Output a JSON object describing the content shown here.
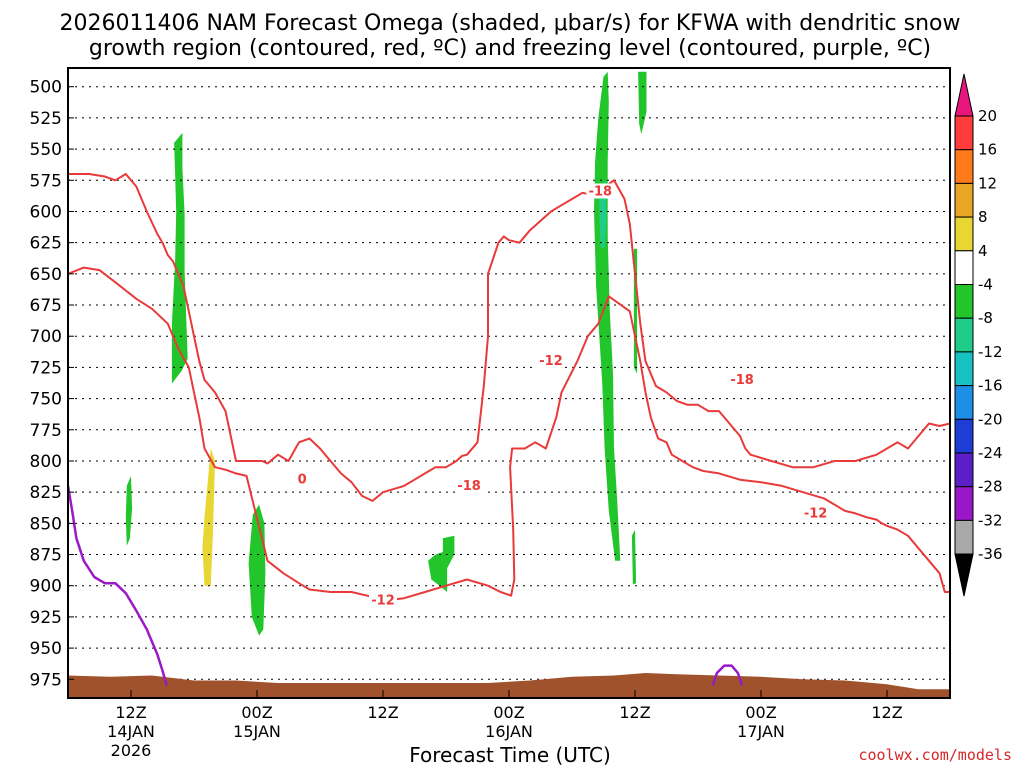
{
  "title_line1": "2026011406 NAM Forecast Omega (shaded, μbar/s) for KFWA with dendritic snow",
  "title_line2": "growth region (contoured, red, ºC) and freezing level (contoured, purple, ºC)",
  "xlabel": "Forecast Time (UTC)",
  "credit": "coolwx.com/models",
  "chart_data": {
    "type": "heatmap",
    "title": "2026011406 NAM Forecast Omega (shaded, μbar/s) for KFWA with dendritic snow growth region (contoured, red, ºC) and freezing level (contoured, purple, ºC)",
    "xlabel": "Forecast Time (UTC)",
    "ylabel": "",
    "x_unit": "hours since 2026-01-14 06Z",
    "xlim": [
      0,
      84
    ],
    "ylim": [
      990,
      485
    ],
    "y_ticks": [
      500,
      525,
      550,
      575,
      600,
      625,
      650,
      675,
      700,
      725,
      750,
      775,
      800,
      825,
      850,
      875,
      900,
      925,
      950,
      975
    ],
    "x_ticks": [
      {
        "x": 6,
        "label": "12Z",
        "line2": "14JAN",
        "line3": "2026"
      },
      {
        "x": 18,
        "label": "00Z",
        "line2": "15JAN",
        "line3": ""
      },
      {
        "x": 30,
        "label": "12Z",
        "line2": "",
        "line3": ""
      },
      {
        "x": 42,
        "label": "00Z",
        "line2": "16JAN",
        "line3": ""
      },
      {
        "x": 54,
        "label": "12Z",
        "line2": "",
        "line3": ""
      },
      {
        "x": 66,
        "label": "00Z",
        "line2": "17JAN",
        "line3": ""
      },
      {
        "x": 78,
        "label": "12Z",
        "line2": "",
        "line3": ""
      }
    ],
    "colorbar": {
      "levels": [
        20,
        16,
        12,
        8,
        4,
        -4,
        -8,
        -12,
        -16,
        -20,
        -24,
        -28,
        -32,
        -36
      ],
      "colors": [
        "#ff3b3b",
        "#ff7a1a",
        "#e8a622",
        "#e8d632",
        "#ffffff",
        "#22c52a",
        "#1fcc88",
        "#19c2c2",
        "#1e8fe6",
        "#1e3cd6",
        "#5a1fc7",
        "#9a17c9",
        "#a8a8a8"
      ],
      "top_arrow_color": "#e8157d",
      "bottom_arrow_color": "#000000"
    },
    "omega_regions": [
      {
        "value": -6,
        "color": "#22c52a",
        "points": [
          [
            10.1,
            545
          ],
          [
            10.9,
            537
          ],
          [
            10.9,
            565
          ],
          [
            11.1,
            602
          ],
          [
            11.1,
            648
          ],
          [
            11.4,
            718
          ],
          [
            10.8,
            728
          ],
          [
            9.9,
            738
          ],
          [
            9.9,
            690
          ],
          [
            10.2,
            640
          ],
          [
            10.3,
            600
          ],
          [
            10.2,
            570
          ]
        ]
      },
      {
        "value": -6,
        "color": "#22c52a",
        "points": [
          [
            5.6,
            820
          ],
          [
            6.0,
            812
          ],
          [
            6.1,
            838
          ],
          [
            5.9,
            862
          ],
          [
            5.6,
            868
          ],
          [
            5.5,
            845
          ]
        ]
      },
      {
        "value": 5,
        "color": "#e8d632",
        "points": [
          [
            13.0,
            845
          ],
          [
            13.6,
            790
          ],
          [
            14.0,
            800
          ],
          [
            13.8,
            858
          ],
          [
            13.6,
            900
          ],
          [
            13.0,
            900
          ],
          [
            12.8,
            870
          ]
        ]
      },
      {
        "value": -6,
        "color": "#22c52a",
        "points": [
          [
            17.6,
            843
          ],
          [
            18.2,
            835
          ],
          [
            18.7,
            850
          ],
          [
            18.8,
            890
          ],
          [
            18.6,
            935
          ],
          [
            18.2,
            940
          ],
          [
            17.5,
            925
          ],
          [
            17.2,
            882
          ]
        ]
      },
      {
        "value": -6,
        "color": "#22c52a",
        "points": [
          [
            35.0,
            875
          ],
          [
            35.7,
            873
          ],
          [
            35.7,
            862
          ],
          [
            36.8,
            860
          ],
          [
            36.8,
            875
          ],
          [
            36.1,
            886
          ],
          [
            36.1,
            905
          ],
          [
            35.4,
            900
          ],
          [
            34.6,
            895
          ],
          [
            34.3,
            880
          ]
        ]
      },
      {
        "value": -6,
        "color": "#22c52a",
        "points": [
          [
            50.5,
            525
          ],
          [
            51.0,
            492
          ],
          [
            51.4,
            488
          ],
          [
            51.5,
            512
          ],
          [
            51.4,
            560
          ],
          [
            51.4,
            620
          ],
          [
            51.6,
            680
          ],
          [
            51.9,
            730
          ],
          [
            52.0,
            790
          ],
          [
            52.3,
            830
          ],
          [
            52.6,
            880
          ],
          [
            52.1,
            880
          ],
          [
            51.5,
            840
          ],
          [
            51.1,
            790
          ],
          [
            50.9,
            740
          ],
          [
            50.6,
            700
          ],
          [
            50.3,
            660
          ],
          [
            50.1,
            600
          ],
          [
            50.2,
            560
          ]
        ]
      },
      {
        "value": -10,
        "color": "#1fcc88",
        "points": [
          [
            50.6,
            580
          ],
          [
            51.2,
            575
          ],
          [
            51.3,
            605
          ],
          [
            51.1,
            630
          ],
          [
            50.7,
            628
          ],
          [
            50.6,
            600
          ]
        ]
      },
      {
        "value": -6,
        "color": "#22c52a",
        "points": [
          [
            54.3,
            488
          ],
          [
            55.1,
            488
          ],
          [
            55.1,
            520
          ],
          [
            54.6,
            538
          ],
          [
            54.4,
            530
          ]
        ]
      },
      {
        "value": -6,
        "color": "#22c52a",
        "points": [
          [
            53.9,
            630
          ],
          [
            54.2,
            630
          ],
          [
            54.2,
            730
          ],
          [
            53.9,
            725
          ]
        ]
      },
      {
        "value": -6,
        "color": "#22c52a",
        "points": [
          [
            53.7,
            860
          ],
          [
            54.0,
            855
          ],
          [
            54.1,
            898
          ],
          [
            53.8,
            899
          ]
        ]
      }
    ],
    "isotherms": [
      {
        "level": -12,
        "color": "#e83a3a",
        "x": [
          0,
          1.5,
          3,
          5,
          6.5,
          8,
          9.5,
          10.5,
          11.5,
          12,
          12.5,
          13,
          14,
          15,
          16,
          17,
          19,
          20.5,
          22,
          23,
          25,
          27,
          28.5,
          30,
          32,
          34,
          36,
          38,
          40,
          41.2,
          42.2,
          42.5,
          42.4,
          42.1,
          42.3,
          43.5,
          44.5,
          45.5,
          46.5,
          47,
          48.5,
          49.5,
          50.5,
          51.5,
          53.5,
          54.5,
          55,
          55.5,
          56.2,
          57,
          57.5,
          58.5,
          59.5,
          60.5,
          62,
          64,
          66,
          68,
          70,
          72,
          73,
          74,
          75,
          76,
          77,
          77.5,
          78,
          79,
          80,
          81,
          82,
          83,
          83.5,
          84
        ],
        "y": [
          650,
          645,
          647,
          660,
          670,
          678,
          690,
          710,
          725,
          745,
          765,
          790,
          805,
          807,
          810,
          812,
          880,
          890,
          898,
          903,
          905,
          905,
          908,
          912,
          910,
          905,
          900,
          895,
          900,
          905,
          908,
          895,
          855,
          805,
          790,
          790,
          785,
          790,
          765,
          745,
          720,
          700,
          690,
          668,
          680,
          720,
          745,
          765,
          782,
          785,
          795,
          800,
          805,
          808,
          810,
          815,
          817,
          820,
          825,
          830,
          835,
          840,
          842,
          845,
          847,
          850,
          852,
          855,
          860,
          870,
          880,
          890,
          905,
          905
        ]
      },
      {
        "level": -18,
        "color": "#e83a3a",
        "x": [
          0,
          2,
          3.5,
          4.5,
          5.5,
          6.5,
          7.5,
          8.5,
          9,
          9.5,
          10,
          10.5,
          11,
          11.5,
          12,
          12.5,
          13,
          14,
          15,
          16,
          17,
          18,
          18.5,
          19,
          20,
          21,
          22,
          23,
          24,
          25,
          26,
          27,
          28,
          29,
          30,
          32,
          33,
          34,
          35,
          36,
          37,
          37.5,
          38,
          39,
          39.6,
          40,
          40,
          41,
          41.5,
          42,
          43,
          44,
          46,
          47,
          48,
          49,
          50.5,
          51,
          51.5,
          52,
          53,
          53.5,
          54,
          54.5,
          55,
          56,
          57,
          58,
          59,
          60,
          61,
          62,
          63,
          64,
          64.5,
          65,
          67,
          69,
          71,
          73,
          75,
          77,
          78,
          79,
          80,
          81,
          82,
          83,
          84
        ],
        "y": [
          570,
          570,
          572,
          575,
          570,
          580,
          600,
          618,
          625,
          635,
          640,
          650,
          660,
          680,
          700,
          720,
          735,
          745,
          760,
          800,
          800,
          800,
          800,
          802,
          795,
          800,
          785,
          782,
          790,
          800,
          810,
          817,
          828,
          832,
          825,
          820,
          815,
          810,
          805,
          805,
          800,
          796,
          795,
          785,
          740,
          700,
          650,
          625,
          620,
          623,
          625,
          615,
          600,
          595,
          590,
          585,
          588,
          580,
          578,
          575,
          590,
          610,
          650,
          690,
          720,
          740,
          745,
          752,
          755,
          755,
          760,
          760,
          770,
          780,
          790,
          795,
          800,
          805,
          805,
          800,
          800,
          795,
          790,
          785,
          790,
          780,
          770,
          772,
          770
        ]
      }
    ],
    "freezing_level": [
      {
        "level": 0,
        "color": "#9b19c6",
        "x": [
          0,
          0.4,
          0.8,
          1.5,
          2.5,
          3.5,
          4.5,
          5.5,
          6.5,
          7.5,
          8.5,
          9,
          9.4
        ],
        "y": [
          820,
          840,
          862,
          880,
          893,
          898,
          898,
          906,
          920,
          935,
          955,
          968,
          980
        ]
      },
      {
        "level": 0,
        "color": "#9b19c6",
        "x": [
          61.4,
          61.8,
          62.5,
          63.2,
          63.8,
          64.2
        ],
        "y": [
          980,
          970,
          964,
          964,
          970,
          980
        ]
      }
    ],
    "contour_labels": [
      {
        "text": "0",
        "x": 22.3,
        "y": 815,
        "color": "#e83a3a"
      },
      {
        "text": "-18",
        "x": 38.2,
        "y": 820,
        "color": "#e83a3a"
      },
      {
        "text": "-12",
        "x": 30,
        "y": 912,
        "color": "#e83a3a"
      },
      {
        "text": "-12",
        "x": 46,
        "y": 720,
        "color": "#e83a3a"
      },
      {
        "text": "-18",
        "x": 50.7,
        "y": 584,
        "color": "#e83a3a"
      },
      {
        "text": "-18",
        "x": 64.2,
        "y": 735,
        "color": "#e83a3a"
      },
      {
        "text": "-12",
        "x": 71.2,
        "y": 842,
        "color": "#e83a3a"
      }
    ],
    "terrain": {
      "color": "#a0522d",
      "x": [
        0,
        4,
        8,
        12,
        16,
        20,
        24,
        28,
        32,
        36,
        40,
        44,
        48,
        52,
        55,
        58,
        62,
        66,
        70,
        74,
        78,
        81,
        84
      ],
      "y": [
        972,
        973,
        972,
        976,
        976,
        978,
        978,
        978,
        978,
        978,
        978,
        976,
        973,
        972,
        970,
        971,
        972,
        973,
        975,
        976,
        979,
        983,
        983
      ]
    },
    "grid": true,
    "legend": "right"
  }
}
